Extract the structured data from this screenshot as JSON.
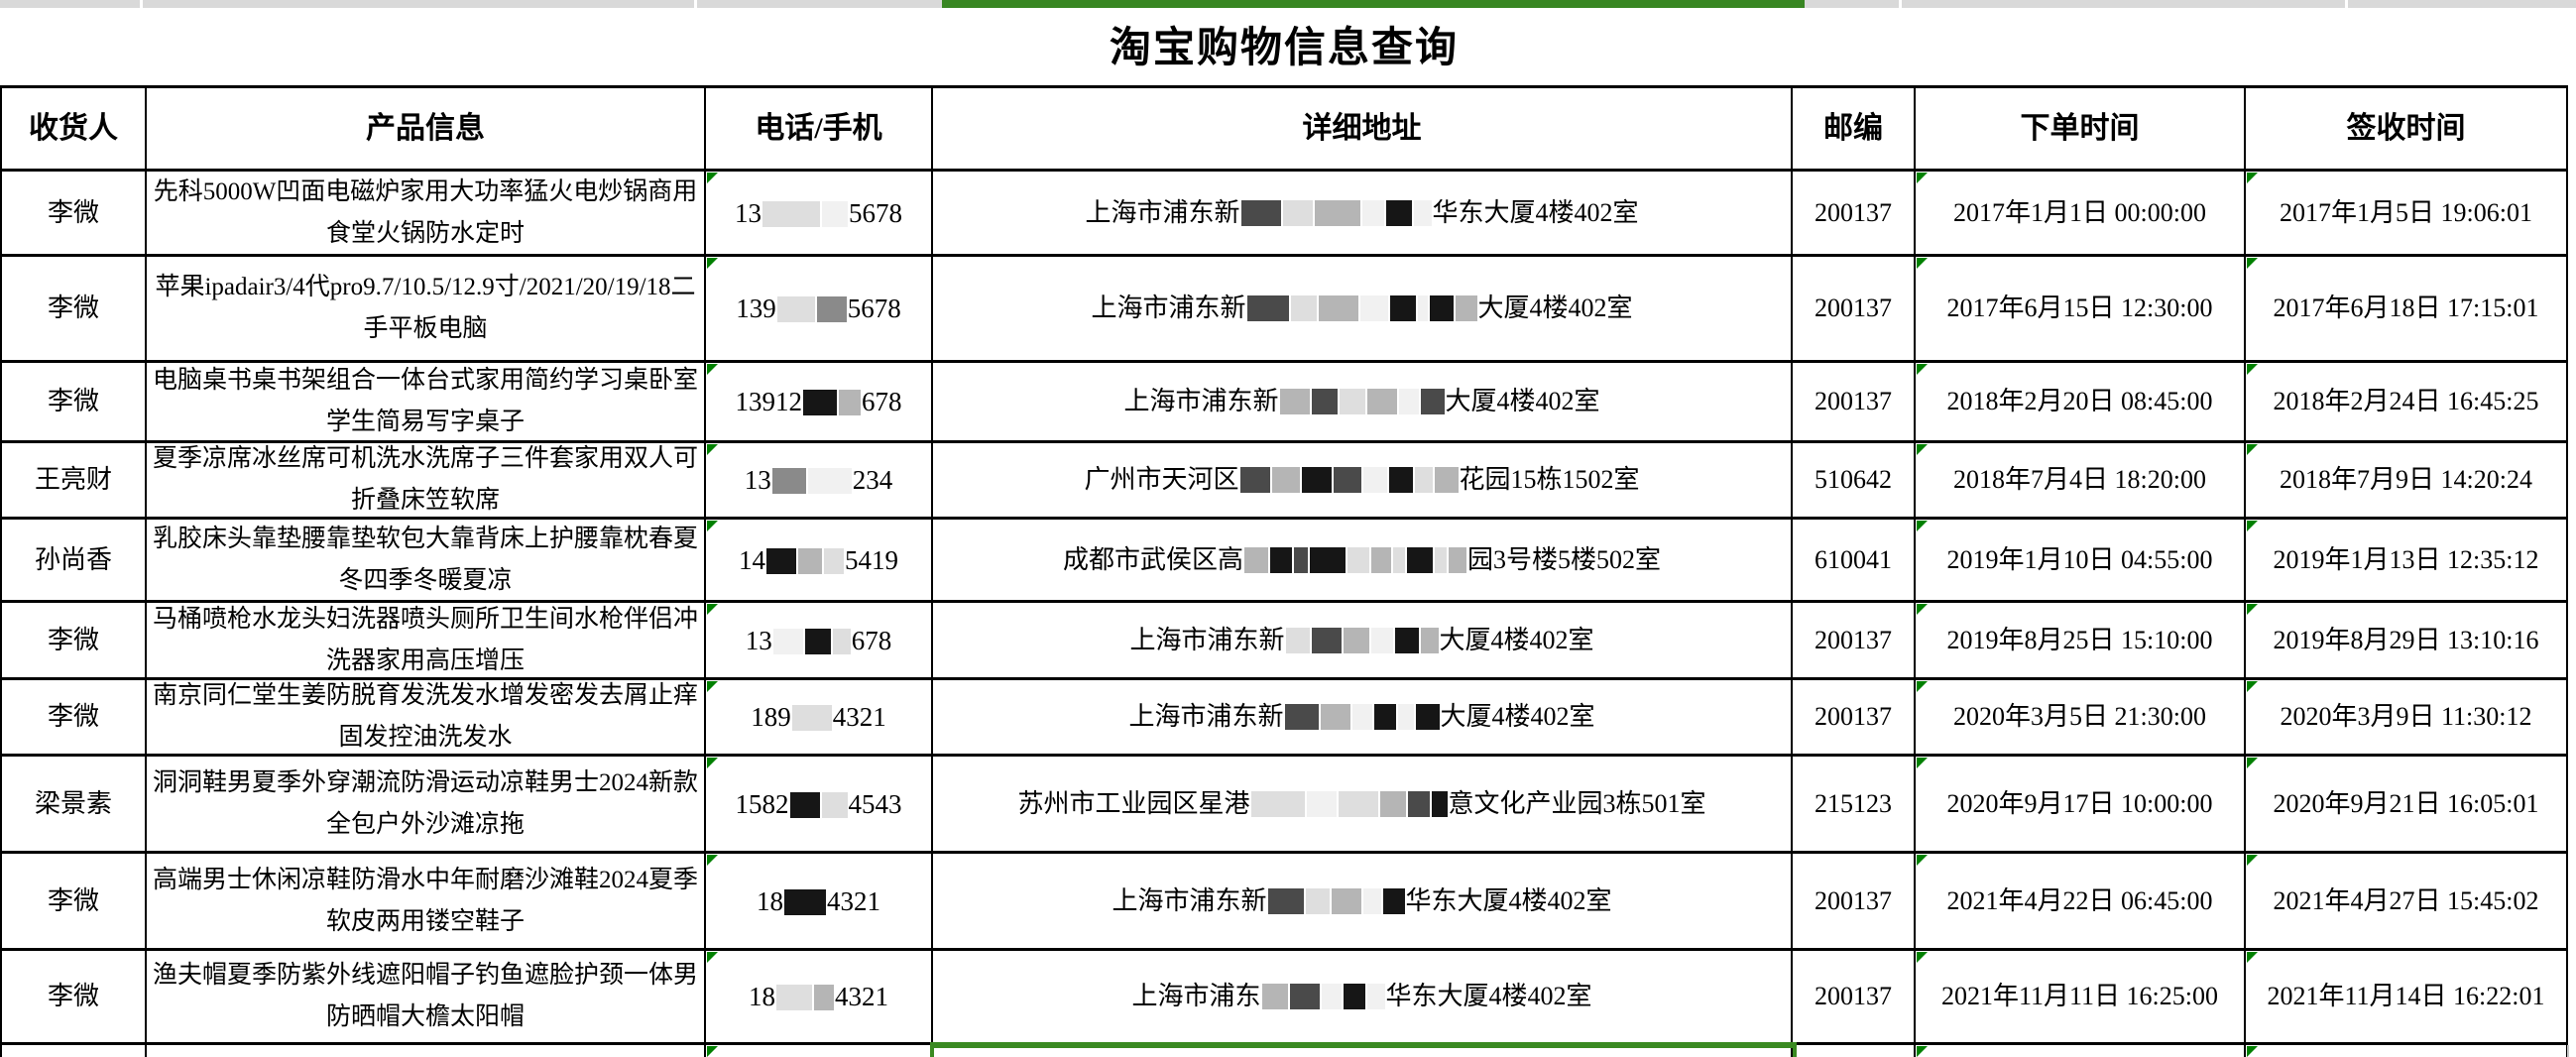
{
  "title": "淘宝购物信息查询",
  "columns": [
    "收货人",
    "产品信息",
    "电话/手机",
    "详细地址",
    "邮编",
    "下单时间",
    "签收时间"
  ],
  "colors": {
    "triangle_green": "#008000",
    "selection_green": "#3a8a22",
    "topbar_gray": "#d9d9d9",
    "topbar_green": "#388622"
  },
  "rows": [
    {
      "recipient": "李微",
      "product": "先科5000W凹面电磁炉家用大功率猛火电炒锅商用食堂火锅防水定时",
      "phone_pre": "13",
      "phone_blocks": [
        [
          "light",
          58
        ],
        [
          "faint",
          26
        ]
      ],
      "phone_post": "5678",
      "addr_pre": "上海市浦东新",
      "addr_blocks": [
        [
          "dark",
          40
        ],
        [
          "light",
          30
        ],
        [
          "gray",
          46
        ],
        [
          "faint",
          22
        ],
        [
          "black",
          26
        ],
        [
          "faint",
          18
        ]
      ],
      "addr_post": "华东大厦4楼402室",
      "zip": "200137",
      "order_time": "2017年1月1日 00:00:00",
      "sign_time": "2017年1月5日 19:06:01"
    },
    {
      "recipient": "李微",
      "product": "苹果ipadair3/4代pro9.7/10.5/12.9寸/2021/20/19/18二手平板电脑",
      "phone_pre": "139",
      "phone_blocks": [
        [
          "light",
          38
        ],
        [
          "mid",
          30
        ]
      ],
      "phone_post": "5678",
      "addr_pre": "上海市浦东新",
      "addr_blocks": [
        [
          "dark",
          42
        ],
        [
          "light",
          26
        ],
        [
          "gray",
          40
        ],
        [
          "faint",
          28
        ],
        [
          "black",
          26
        ],
        [
          "faint",
          10
        ],
        [
          "black",
          24
        ],
        [
          "gray",
          22
        ]
      ],
      "addr_post": "大厦4楼402室",
      "zip": "200137",
      "order_time": "2017年6月15日 12:30:00",
      "sign_time": "2017年6月18日 17:15:01"
    },
    {
      "recipient": "李微",
      "product": "电脑桌书桌书架组合一体台式家用简约学习桌卧室学生简易写字桌子",
      "phone_pre": "13912",
      "phone_blocks": [
        [
          "black",
          34
        ],
        [
          "gray",
          22
        ]
      ],
      "phone_post": "678",
      "addr_pre": "上海市浦东新",
      "addr_blocks": [
        [
          "gray",
          30
        ],
        [
          "dark",
          26
        ],
        [
          "light",
          26
        ],
        [
          "gray",
          30
        ],
        [
          "faint",
          20
        ],
        [
          "dark",
          24
        ]
      ],
      "addr_post": "大厦4楼402室",
      "zip": "200137",
      "order_time": "2018年2月20日 08:45:00",
      "sign_time": "2018年2月24日 16:45:25"
    },
    {
      "recipient": "王亮财",
      "product": "夏季凉席冰丝席可机洗水洗席子三件套家用双人可折叠床笠软席",
      "phone_pre": "13",
      "phone_blocks": [
        [
          "mid",
          34
        ],
        [
          "faint",
          44
        ]
      ],
      "phone_post": "234",
      "addr_pre": "广州市天河区",
      "addr_blocks": [
        [
          "dark",
          30
        ],
        [
          "gray",
          28
        ],
        [
          "black",
          30
        ],
        [
          "dark",
          28
        ],
        [
          "faint",
          24
        ],
        [
          "black",
          24
        ],
        [
          "light",
          18
        ],
        [
          "gray",
          24
        ]
      ],
      "addr_post": "花园15栋1502室",
      "zip": "510642",
      "order_time": "2018年7月4日 18:20:00",
      "sign_time": "2018年7月9日 14:20:24"
    },
    {
      "recipient": "孙尚香",
      "product": "乳胶床头靠垫腰靠垫软包大靠背床上护腰靠枕春夏冬四季冬暖夏凉",
      "phone_pre": "14",
      "phone_blocks": [
        [
          "black",
          30
        ],
        [
          "gray",
          24
        ],
        [
          "light",
          20
        ]
      ],
      "phone_post": "5419",
      "addr_pre": "成都市武侯区高",
      "addr_blocks": [
        [
          "gray",
          24
        ],
        [
          "black",
          22
        ],
        [
          "dark",
          14
        ],
        [
          "black",
          36
        ],
        [
          "light",
          22
        ],
        [
          "gray",
          20
        ],
        [
          "light",
          12
        ],
        [
          "black",
          26
        ],
        [
          "light",
          12
        ],
        [
          "gray",
          18
        ]
      ],
      "addr_post": "园3号楼5楼502室",
      "zip": "610041",
      "order_time": "2019年1月10日 04:55:00",
      "sign_time": "2019年1月13日 12:35:12"
    },
    {
      "recipient": "李微",
      "product": "马桶喷枪水龙头妇洗器喷头厕所卫生间水枪伴侣冲洗器家用高压增压",
      "phone_pre": "13",
      "phone_blocks": [
        [
          "faint",
          30
        ],
        [
          "black",
          26
        ],
        [
          "light",
          18
        ]
      ],
      "phone_post": "678",
      "addr_pre": "上海市浦东新",
      "addr_blocks": [
        [
          "light",
          24
        ],
        [
          "dark",
          30
        ],
        [
          "gray",
          26
        ],
        [
          "faint",
          22
        ],
        [
          "black",
          24
        ],
        [
          "gray",
          18
        ]
      ],
      "addr_post": "大厦4楼402室",
      "zip": "200137",
      "order_time": "2019年8月25日 15:10:00",
      "sign_time": "2019年8月29日 13:10:16"
    },
    {
      "recipient": "李微",
      "product": "南京同仁堂生姜防脱育发洗发水增发密发去屑止痒固发控油洗发水",
      "phone_pre": "189",
      "phone_blocks": [
        [
          "light",
          40
        ]
      ],
      "phone_post": "4321",
      "addr_pre": "上海市浦东新",
      "addr_blocks": [
        [
          "dark",
          34
        ],
        [
          "gray",
          30
        ],
        [
          "faint",
          20
        ],
        [
          "black",
          22
        ],
        [
          "faint",
          16
        ],
        [
          "black",
          24
        ]
      ],
      "addr_post": "大厦4楼402室",
      "zip": "200137",
      "order_time": "2020年3月5日 21:30:00",
      "sign_time": "2020年3月9日 11:30:12"
    },
    {
      "recipient": "梁景素",
      "product": "洞洞鞋男夏季外穿潮流防滑运动凉鞋男士2024新款全包户外沙滩凉拖",
      "phone_pre": "1582",
      "phone_blocks": [
        [
          "black",
          30
        ],
        [
          "light",
          26
        ]
      ],
      "phone_post": "4543",
      "addr_pre": "苏州市工业园区星港",
      "addr_blocks": [
        [
          "light",
          54
        ],
        [
          "faint",
          30
        ],
        [
          "light",
          40
        ],
        [
          "gray",
          26
        ],
        [
          "dark",
          22
        ],
        [
          "black",
          16
        ]
      ],
      "addr_post": "意文化产业园3栋501室",
      "zip": "215123",
      "order_time": "2020年9月17日 10:00:00",
      "sign_time": "2020年9月21日 16:05:01"
    },
    {
      "recipient": "李微",
      "product": "高端男士休闲凉鞋防滑水中年耐磨沙滩鞋2024夏季软皮两用镂空鞋子",
      "phone_pre": "18",
      "phone_blocks": [
        [
          "black",
          42
        ]
      ],
      "phone_post": "4321",
      "addr_pre": "上海市浦东新",
      "addr_blocks": [
        [
          "dark",
          36
        ],
        [
          "light",
          24
        ],
        [
          "gray",
          30
        ],
        [
          "faint",
          18
        ],
        [
          "black",
          22
        ]
      ],
      "addr_post": "华东大厦4楼402室",
      "zip": "200137",
      "order_time": "2021年4月22日 06:45:00",
      "sign_time": "2021年4月27日 15:45:02"
    },
    {
      "recipient": "李微",
      "product": "渔夫帽夏季防紫外线遮阳帽子钓鱼遮脸护颈一体男防晒帽大檐太阳帽",
      "phone_pre": "18",
      "phone_blocks": [
        [
          "light",
          36
        ],
        [
          "gray",
          20
        ]
      ],
      "phone_post": "4321",
      "addr_pre": "上海市浦东",
      "addr_blocks": [
        [
          "gray",
          26
        ],
        [
          "dark",
          30
        ],
        [
          "faint",
          20
        ],
        [
          "black",
          22
        ],
        [
          "faint",
          18
        ]
      ],
      "addr_post": "华东大厦4楼402室",
      "zip": "200137",
      "order_time": "2021年11月11日 16:25:00",
      "sign_time": "2021年11月14日 16:22:01"
    }
  ]
}
